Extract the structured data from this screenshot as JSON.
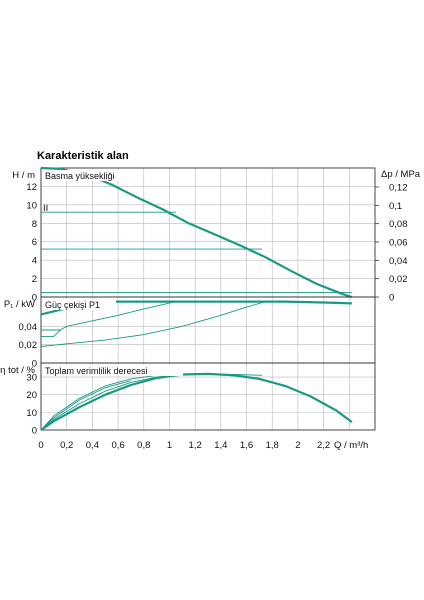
{
  "title": "Karakteristik alan",
  "colors": {
    "curve": "#1a9a86",
    "grid": "#b8b8b8",
    "frame": "#333333",
    "axis_line": "#1a9a86"
  },
  "x_axis": {
    "label": "Q / m³/h",
    "ticks": [
      "0",
      "0,2",
      "0,4",
      "0,6",
      "0,8",
      "1",
      "1,2",
      "1,4",
      "1,6",
      "1,8",
      "2",
      "2,2"
    ]
  },
  "chart_data": [
    {
      "type": "line",
      "title": "Basma yüksekliği",
      "ylabel": "H / m",
      "ylabel_right": "Δp / MPa",
      "xlim": [
        0,
        2.6
      ],
      "ylim": [
        0,
        14
      ],
      "y_ticks": [
        "0",
        "2",
        "4",
        "6",
        "8",
        "10",
        "12"
      ],
      "y_ticks_right": [
        "0",
        "0,02",
        "0,04",
        "0,06",
        "0,08",
        "0,1",
        "0,12"
      ],
      "marker_label": "II",
      "series": [
        {
          "x": [
            0,
            0.15,
            0.35,
            0.55,
            0.75,
            0.95,
            1.15,
            1.35,
            1.55,
            1.75,
            1.95,
            2.15,
            2.35,
            2.42
          ],
          "y": [
            14.0,
            13.9,
            13.3,
            12.2,
            10.8,
            9.5,
            8.0,
            6.8,
            5.6,
            4.3,
            2.8,
            1.4,
            0.3,
            0.0
          ]
        },
        {
          "x": [
            0,
            1.05
          ],
          "y": [
            9.2,
            9.2
          ]
        },
        {
          "x": [
            0,
            1.72
          ],
          "y": [
            5.2,
            5.2
          ]
        },
        {
          "x": [
            0,
            2.42
          ],
          "y": [
            0.5,
            0.5
          ]
        }
      ]
    },
    {
      "type": "line",
      "title": "Güç çekişi P1",
      "ylabel": "P₁ / kW",
      "xlim": [
        0,
        2.6
      ],
      "ylim": [
        0,
        0.072
      ],
      "y_ticks": [
        "0",
        "0,02",
        "0,04"
      ],
      "series": [
        {
          "x": [
            0,
            0.15,
            0.35,
            0.55,
            0.75,
            1.0,
            1.3,
            1.6,
            1.9,
            2.2,
            2.42
          ],
          "y": [
            0.053,
            0.058,
            0.064,
            0.067,
            0.067,
            0.067,
            0.067,
            0.067,
            0.067,
            0.066,
            0.065
          ]
        },
        {
          "x": [
            0,
            0.15,
            0.2,
            0.4,
            0.6,
            0.8,
            1.05
          ],
          "y": [
            0.036,
            0.036,
            0.04,
            0.046,
            0.052,
            0.059,
            0.067
          ]
        },
        {
          "x": [
            0,
            0.2,
            0.5,
            0.8,
            1.1,
            1.4,
            1.6,
            1.75
          ],
          "y": [
            0.018,
            0.021,
            0.025,
            0.031,
            0.04,
            0.052,
            0.061,
            0.067
          ]
        },
        {
          "x": [
            0,
            0.1,
            0.15
          ],
          "y": [
            0.029,
            0.029,
            0.036
          ]
        }
      ]
    },
    {
      "type": "line",
      "title": "Toplam verimlilik derecesi",
      "ylabel": "η tot / %",
      "xlim": [
        0,
        2.6
      ],
      "ylim": [
        0,
        38
      ],
      "y_ticks": [
        "0",
        "10",
        "20",
        "30"
      ],
      "series": [
        {
          "x": [
            0,
            0.1,
            0.3,
            0.5,
            0.7,
            0.9,
            1.1,
            1.3,
            1.5,
            1.7,
            1.9,
            2.1,
            2.3,
            2.42
          ],
          "y": [
            0,
            5,
            13,
            20,
            25.5,
            29.5,
            31.5,
            31.8,
            31,
            29,
            25,
            19,
            11,
            4.5
          ]
        },
        {
          "x": [
            0,
            0.1,
            0.3,
            0.5,
            0.7,
            0.9,
            1.05
          ],
          "y": [
            0,
            8,
            18,
            25,
            29,
            31,
            31.5
          ]
        },
        {
          "x": [
            0,
            0.1,
            0.3,
            0.5,
            0.7,
            0.9,
            1.1,
            1.3,
            1.5,
            1.72
          ],
          "y": [
            0,
            6,
            15,
            22,
            27,
            30,
            31.5,
            31.8,
            31.5,
            31
          ]
        },
        {
          "x": [
            0,
            0.1,
            0.3,
            0.5,
            0.7
          ],
          "y": [
            0,
            7,
            17,
            24,
            28
          ]
        }
      ]
    }
  ]
}
